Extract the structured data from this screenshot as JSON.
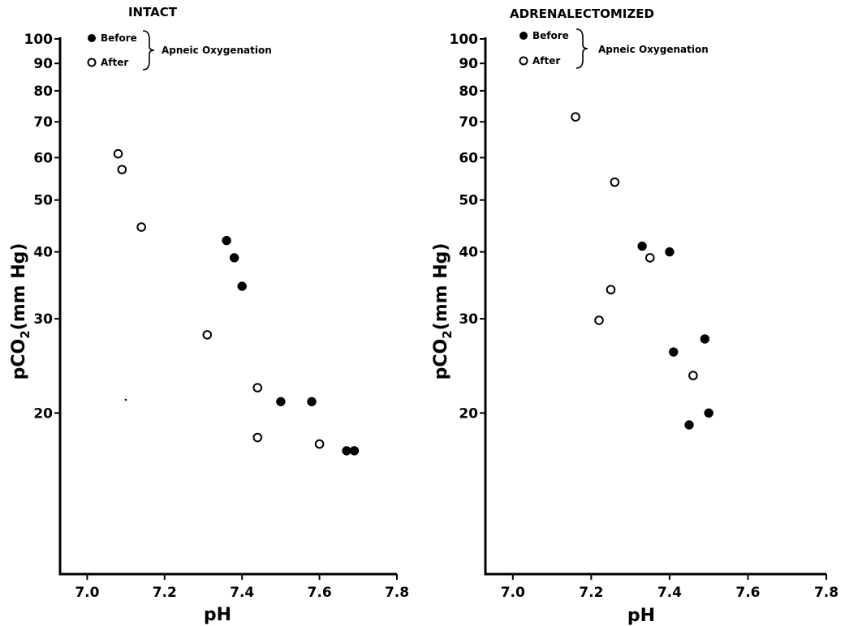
{
  "chart_data": [
    {
      "type": "scatter",
      "title": "INTACT",
      "xlabel": "pH",
      "ylabel": "pCO2(mm Hg)",
      "ylabel_main": "pCO",
      "ylabel_sub": "2",
      "ylabel_rest": "(mm Hg)",
      "xscale": "linear",
      "yscale": "log",
      "xlim": [
        6.93,
        7.8
      ],
      "ylim": [
        10,
        100
      ],
      "xticks": [
        7.0,
        7.2,
        7.4,
        7.6,
        7.8
      ],
      "xtick_labels": [
        "7.0",
        "7.2",
        "7.4",
        "7.6",
        "7.8"
      ],
      "yticks": [
        20,
        30,
        40,
        50,
        60,
        70,
        80,
        90,
        100
      ],
      "ytick_labels": [
        "20",
        "30",
        "40",
        "50",
        "60",
        "70",
        "80",
        "90",
        "100"
      ],
      "legend": {
        "placement": "top-left",
        "entries": [
          "Before",
          "After"
        ],
        "group_label": "Apneic Oxygenation"
      },
      "series": [
        {
          "name": "Before",
          "marker": "filled-circle",
          "points": [
            {
              "x": 7.36,
              "y": 42
            },
            {
              "x": 7.38,
              "y": 39
            },
            {
              "x": 7.4,
              "y": 34.5
            },
            {
              "x": 7.5,
              "y": 21
            },
            {
              "x": 7.58,
              "y": 21
            },
            {
              "x": 7.67,
              "y": 17
            },
            {
              "x": 7.69,
              "y": 17
            }
          ]
        },
        {
          "name": "After",
          "marker": "open-circle",
          "points": [
            {
              "x": 7.08,
              "y": 61
            },
            {
              "x": 7.09,
              "y": 57
            },
            {
              "x": 7.14,
              "y": 44.5
            },
            {
              "x": 7.31,
              "y": 28
            },
            {
              "x": 7.44,
              "y": 22.3
            },
            {
              "x": 7.44,
              "y": 18
            },
            {
              "x": 7.6,
              "y": 17.5
            }
          ]
        }
      ]
    },
    {
      "type": "scatter",
      "title": "ADRENALECTOMIZED",
      "xlabel": "pH",
      "ylabel": "pCO2(mm Hg)",
      "ylabel_main": "pCO",
      "ylabel_sub": "2",
      "ylabel_rest": "(mm Hg)",
      "xscale": "linear",
      "yscale": "log",
      "xlim": [
        6.93,
        7.8
      ],
      "ylim": [
        10,
        100
      ],
      "xticks": [
        7.0,
        7.2,
        7.4,
        7.6,
        7.8
      ],
      "xtick_labels": [
        "7.0",
        "7.2",
        "7.4",
        "7.6",
        "7.8"
      ],
      "yticks": [
        20,
        30,
        40,
        50,
        60,
        70,
        80,
        90,
        100
      ],
      "ytick_labels": [
        "20",
        "30",
        "40",
        "50",
        "60",
        "70",
        "80",
        "90",
        "100"
      ],
      "legend": {
        "placement": "top-left",
        "entries": [
          "Before",
          "After"
        ],
        "group_label": "Apneic Oxygenation"
      },
      "series": [
        {
          "name": "Before",
          "marker": "filled-circle",
          "points": [
            {
              "x": 7.33,
              "y": 41
            },
            {
              "x": 7.4,
              "y": 40
            },
            {
              "x": 7.41,
              "y": 26
            },
            {
              "x": 7.45,
              "y": 19
            },
            {
              "x": 7.49,
              "y": 27.5
            },
            {
              "x": 7.5,
              "y": 20
            }
          ]
        },
        {
          "name": "After",
          "marker": "open-circle",
          "points": [
            {
              "x": 7.16,
              "y": 71.5
            },
            {
              "x": 7.26,
              "y": 54
            },
            {
              "x": 7.25,
              "y": 34
            },
            {
              "x": 7.22,
              "y": 29.8
            },
            {
              "x": 7.35,
              "y": 39
            },
            {
              "x": 7.46,
              "y": 23.5
            }
          ]
        }
      ]
    }
  ]
}
